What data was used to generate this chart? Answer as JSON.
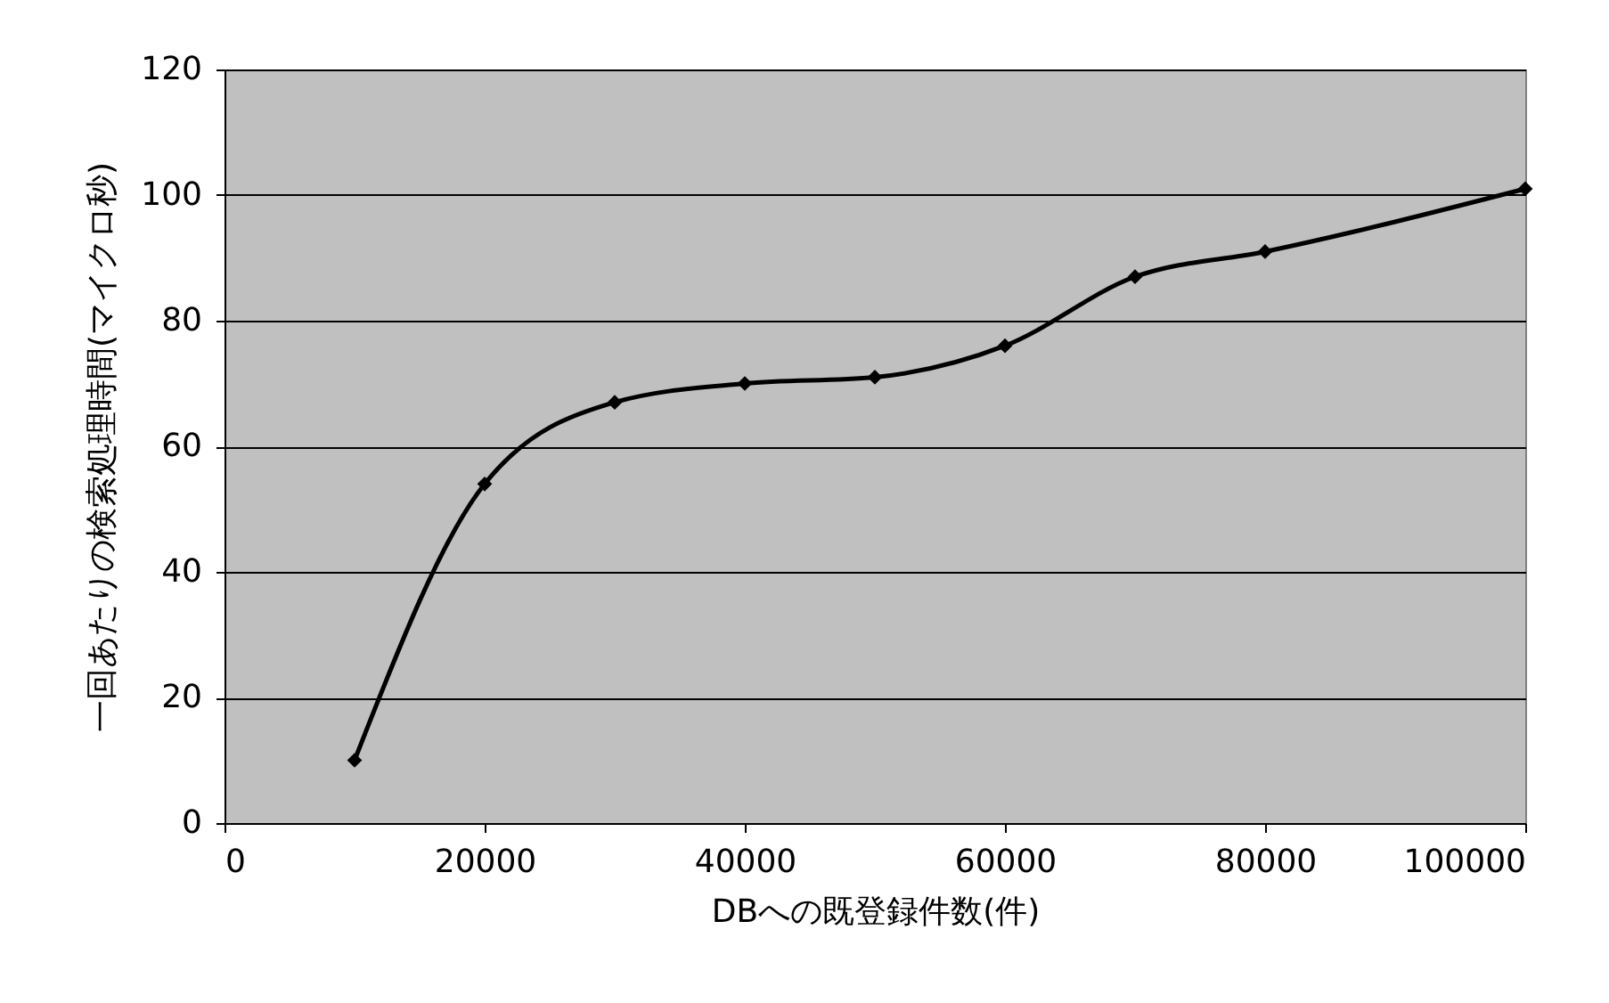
{
  "chart_data": {
    "type": "line",
    "xlabel": "DBへの既登録件数(件)",
    "ylabel": "一回あたりの検索処理時間(マイクロ秒)",
    "x": [
      10000,
      20000,
      30000,
      40000,
      50000,
      60000,
      70000,
      80000,
      100000
    ],
    "series": [
      {
        "color": "#000000",
        "values": [
          10,
          54,
          67,
          70,
          71,
          76,
          87,
          91,
          101
        ]
      }
    ],
    "xlim": [
      0,
      100000
    ],
    "xticks": [
      0,
      20000,
      40000,
      60000,
      80000,
      100000
    ],
    "ylim": [
      0,
      120
    ],
    "yticks": [
      0,
      20,
      40,
      60,
      80,
      100,
      120
    ],
    "grid": "y",
    "marker": "diamond",
    "line_style": "solid"
  }
}
